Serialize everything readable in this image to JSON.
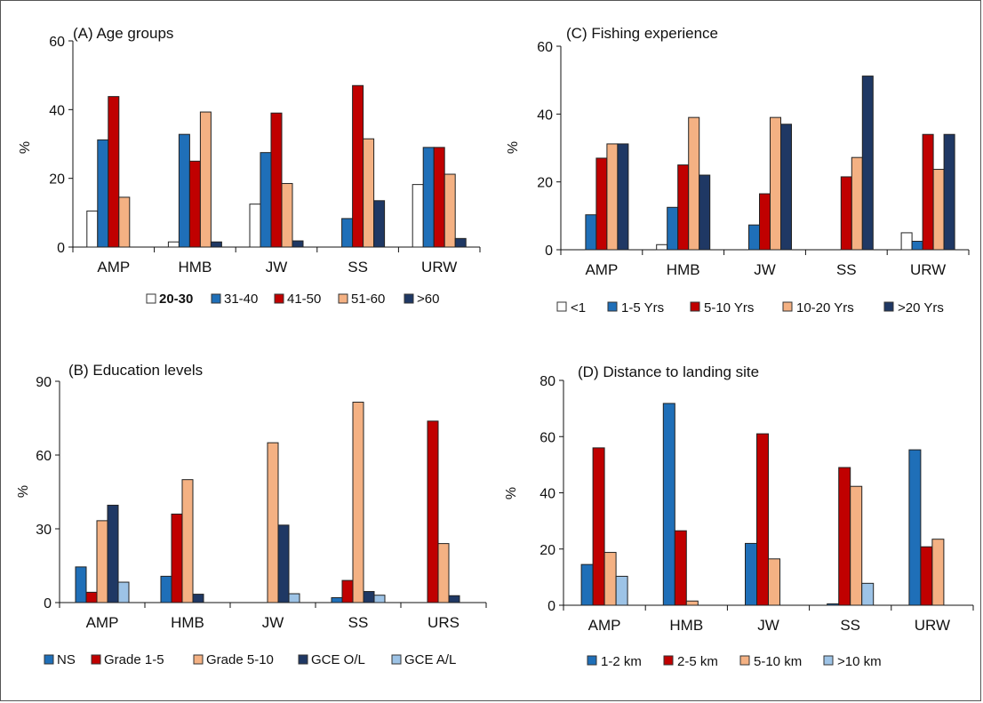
{
  "figure": {
    "charts": [
      {
        "type": "bar",
        "title": "(A) Age groups",
        "ylabel": "%",
        "ylim": [
          0,
          60
        ],
        "yticks": [
          0,
          20,
          40,
          60
        ],
        "categories": [
          "AMP",
          "HMB",
          "JW",
          "SS",
          "URW"
        ],
        "series": [
          {
            "name": "20-30",
            "color": "#ffffff",
            "values": [
              10.5,
              1.5,
              12.5,
              0,
              18.2
            ]
          },
          {
            "name": "31-40",
            "color": "#1f6fb8",
            "values": [
              31.2,
              32.8,
              27.5,
              8.3,
              29.0
            ]
          },
          {
            "name": "41-50",
            "color": "#c00000",
            "values": [
              43.8,
              25.0,
              39.0,
              47.0,
              29.0
            ]
          },
          {
            "name": "51-60",
            "color": "#f4b183",
            "values": [
              14.5,
              39.3,
              18.5,
              31.5,
              21.2
            ]
          },
          {
            "name": ">60",
            "color": "#1f3864",
            "values": [
              0,
              1.5,
              1.8,
              13.5,
              2.5
            ]
          }
        ]
      },
      {
        "type": "bar",
        "title": "(C) Fishing experience",
        "ylabel": "%",
        "ylim": [
          0,
          60
        ],
        "yticks": [
          0,
          20,
          40,
          60
        ],
        "categories": [
          "AMP",
          "HMB",
          "JW",
          "SS",
          "URW"
        ],
        "series": [
          {
            "name": "<1",
            "color": "#ffffff",
            "values": [
              0,
              1.5,
              0,
              0,
              5.0
            ]
          },
          {
            "name": "1-5 Yrs",
            "color": "#1f6fb8",
            "values": [
              10.3,
              12.5,
              7.3,
              0,
              2.5
            ]
          },
          {
            "name": "5-10 Yrs",
            "color": "#c00000",
            "values": [
              27.0,
              25.0,
              16.5,
              21.5,
              34.0
            ]
          },
          {
            "name": "10-20 Yrs",
            "color": "#f4b183",
            "values": [
              31.2,
              39.0,
              39.0,
              27.2,
              23.7
            ]
          },
          {
            "name": ">20 Yrs",
            "color": "#1f3864",
            "values": [
              31.2,
              22.0,
              37.0,
              51.2,
              34.0
            ]
          }
        ]
      },
      {
        "type": "bar",
        "title": "(B) Education levels",
        "ylabel": "%",
        "ylim": [
          0,
          90
        ],
        "yticks": [
          0,
          30,
          60,
          90
        ],
        "categories": [
          "AMP",
          "HMB",
          "JW",
          "SS",
          "URS"
        ],
        "series": [
          {
            "name": "NS",
            "color": "#1f6fb8",
            "values": [
              14.5,
              10.7,
              0,
              2.0,
              0
            ]
          },
          {
            "name": "Grade 1-5",
            "color": "#c00000",
            "values": [
              4.2,
              36.0,
              0,
              9.0,
              73.8
            ]
          },
          {
            "name": "Grade 5-10",
            "color": "#f4b183",
            "values": [
              33.3,
              50.0,
              65.0,
              81.5,
              24.0
            ]
          },
          {
            "name": "GCE O/L",
            "color": "#1f3864",
            "values": [
              39.6,
              3.4,
              31.5,
              4.5,
              2.8
            ]
          },
          {
            "name": "GCE A/L",
            "color": "#9dc3e6",
            "values": [
              8.3,
              0,
              3.6,
              3.0,
              0
            ]
          }
        ]
      },
      {
        "type": "bar",
        "title": "(D) Distance to landing site",
        "ylabel": "%",
        "ylim": [
          0,
          80
        ],
        "yticks": [
          0,
          20,
          40,
          60,
          80
        ],
        "categories": [
          "AMP",
          "HMB",
          "JW",
          "SS",
          "URW"
        ],
        "series": [
          {
            "name": "1-2 km",
            "color": "#1f6fb8",
            "values": [
              14.5,
              71.8,
              22.0,
              0.5,
              55.3
            ]
          },
          {
            "name": "2-5 km",
            "color": "#c00000",
            "values": [
              56.0,
              26.5,
              61.0,
              49.0,
              20.8
            ]
          },
          {
            "name": "5-10 km",
            "color": "#f4b183",
            "values": [
              18.8,
              1.5,
              16.5,
              42.3,
              23.5
            ]
          },
          {
            "name": ">10 km",
            "color": "#9dc3e6",
            "values": [
              10.3,
              0,
              0,
              7.8,
              0
            ]
          }
        ]
      }
    ]
  }
}
